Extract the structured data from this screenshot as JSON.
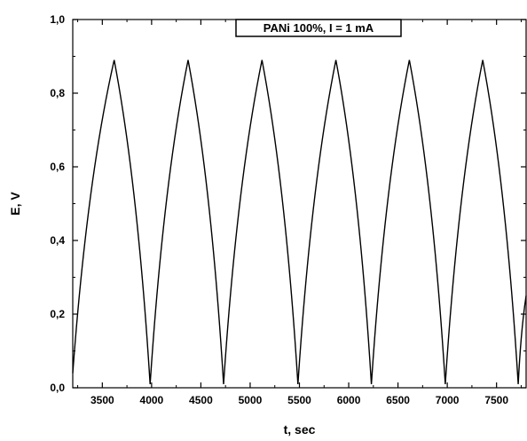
{
  "chart_data": {
    "type": "line",
    "title": "",
    "annotation": "PANi 100%, I = 1 mA",
    "xlabel": "t, sec",
    "ylabel": "E, V",
    "xlim": [
      3200,
      7800
    ],
    "ylim": [
      0.0,
      1.0
    ],
    "x_ticks": [
      3500,
      4000,
      4500,
      5000,
      5500,
      6000,
      6500,
      7000,
      7500
    ],
    "y_ticks": [
      0.0,
      0.2,
      0.4,
      0.6,
      0.8,
      1.0
    ],
    "x_tick_labels": [
      "3500",
      "4000",
      "4500",
      "5000",
      "5500",
      "6000",
      "6500",
      "7000",
      "7500"
    ],
    "y_tick_labels": [
      "0,0",
      "0,2",
      "0,4",
      "0,6",
      "0,8",
      "1,0"
    ],
    "grid": false,
    "legend_position": "top-right",
    "line_color": "#000000",
    "series": [
      {
        "name": "",
        "points": [
          [
            3200,
            0.04
          ],
          [
            3620,
            0.89
          ],
          [
            3985,
            0.01
          ],
          [
            4370,
            0.89
          ],
          [
            4730,
            0.01
          ],
          [
            5120,
            0.89
          ],
          [
            5485,
            0.01
          ],
          [
            5870,
            0.89
          ],
          [
            6230,
            0.01
          ],
          [
            6615,
            0.89
          ],
          [
            6980,
            0.01
          ],
          [
            7360,
            0.89
          ],
          [
            7720,
            0.01
          ],
          [
            7800,
            0.25
          ]
        ]
      }
    ]
  }
}
